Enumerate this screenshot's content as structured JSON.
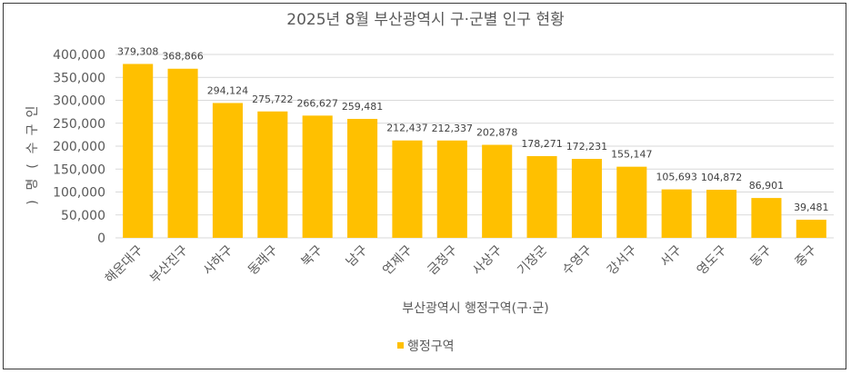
{
  "chart_data": {
    "type": "bar",
    "title": "2025년 8월 부산광역시 구·군별 인구 현황",
    "xlabel": "부산광역시 행정구역(구·군)",
    "ylabel": "인구수(명)",
    "ylim": [
      0,
      400000
    ],
    "yticks": [
      0,
      50000,
      100000,
      150000,
      200000,
      250000,
      300000,
      350000,
      400000
    ],
    "ytick_labels": [
      "0",
      "50,000",
      "100,000",
      "150,000",
      "200,000",
      "250,000",
      "300,000",
      "350,000",
      "400,000"
    ],
    "ylabel_chars": [
      "인",
      "구",
      "수",
      "(",
      "명",
      ")"
    ],
    "categories": [
      "해운대구",
      "부산진구",
      "사하구",
      "동래구",
      "북구",
      "남구",
      "연제구",
      "금정구",
      "사상구",
      "기장군",
      "수영구",
      "강서구",
      "서구",
      "영도구",
      "동구",
      "중구"
    ],
    "series": [
      {
        "name": "행정구역",
        "color": "#FFC000",
        "values": [
          379308,
          368866,
          294124,
          275722,
          266627,
          259481,
          212437,
          212337,
          202878,
          178271,
          172231,
          155147,
          105693,
          104872,
          86901,
          39481
        ],
        "labels": [
          "379,308",
          "368,866",
          "294,124",
          "275,722",
          "266,627",
          "259,481",
          "212,437",
          "212,337",
          "202,878",
          "178,271",
          "172,231",
          "155,147",
          "105,693",
          "104,872",
          "86,901",
          "39,481"
        ]
      }
    ],
    "grid": true,
    "legend": "bottom"
  }
}
